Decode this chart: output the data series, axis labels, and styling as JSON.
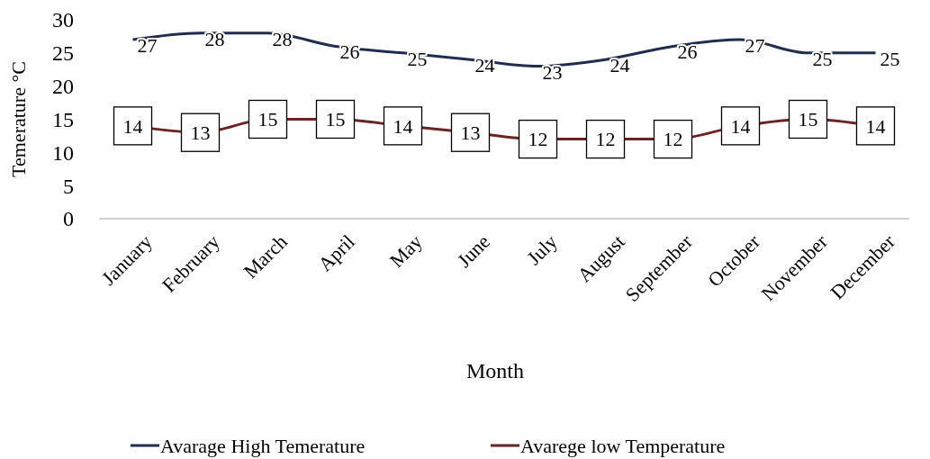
{
  "chart_data": {
    "type": "line",
    "xlabel": "Month",
    "ylabel": "Temerature °C",
    "categories": [
      "January",
      "February",
      "March",
      "April",
      "May",
      "June",
      "July",
      "August",
      "September",
      "October",
      "November",
      "December"
    ],
    "series": [
      {
        "name": "Avarage High Temerature",
        "color": "#1f2d50",
        "marker": "none",
        "values": [
          27,
          28,
          28,
          26,
          25,
          24,
          23,
          24,
          26,
          27,
          25,
          25
        ]
      },
      {
        "name": "Avarege low Temperature",
        "color": "#6e2323",
        "marker": "square",
        "values": [
          14,
          13,
          15,
          15,
          14,
          13,
          12,
          12,
          12,
          14,
          15,
          14
        ]
      }
    ],
    "ylim": [
      0,
      30
    ],
    "yticks": [
      0,
      5,
      10,
      15,
      20,
      25,
      30
    ],
    "data_labels": true,
    "legend": "bottom",
    "grid": false,
    "line_style": "solid"
  }
}
